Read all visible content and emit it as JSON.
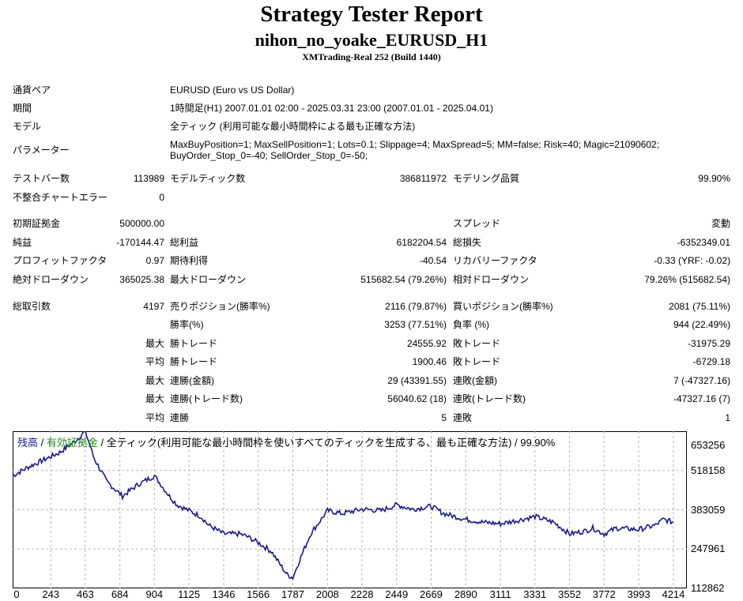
{
  "report": {
    "title": "Strategy Tester Report",
    "ea_name": "nihon_no_yoake_EURUSD_H1",
    "server": "XMTrading-Real 252 (Build 1440)"
  },
  "info": {
    "symbol_label": "通貨ペア",
    "symbol_value": "EURUSD (Euro vs US Dollar)",
    "period_label": "期間",
    "period_value": "1時間足(H1) 2007.01.01 02:00 - 2025.03.31 23:00 (2007.01.01 - 2025.04.01)",
    "model_label": "モデル",
    "model_value": "全ティック (利用可能な最小時間枠による最も正確な方法)",
    "params_label": "パラメーター",
    "params_line1": "MaxBuyPosition=1; MaxSellPosition=1; Lots=0.1; Slippage=4; MaxSpread=5; MM=false; Risk=40; Magic=21090602;",
    "params_line2": "BuyOrder_Stop_0=-40; SellOrder_Stop_0=-50;"
  },
  "stats": {
    "bars_label": "テストバー数",
    "bars_value": "113989",
    "ticks_label": "モデルティック数",
    "ticks_value": "386811972",
    "quality_label": "モデリング品質",
    "quality_value": "99.90%",
    "mismatch_label": "不整合チャートエラー",
    "mismatch_value": "0",
    "deposit_label": "初期証拠金",
    "deposit_value": "500000.00",
    "spread_label": "スプレッド",
    "spread_value": "変動",
    "net_label": "純益",
    "net_value": "-170144.47",
    "gross_profit_label": "総利益",
    "gross_profit_value": "6182204.54",
    "gross_loss_label": "総損失",
    "gross_loss_value": "-6352349.01",
    "pf_label": "プロフィットファクタ",
    "pf_value": "0.97",
    "expected_label": "期待利得",
    "expected_value": "-40.54",
    "recovery_label": "リカバリーファクタ",
    "recovery_value": "-0.33 (YRF: -0.02)",
    "abs_dd_label": "絶対ドローダウン",
    "abs_dd_value": "365025.38",
    "max_dd_label": "最大ドローダウン",
    "max_dd_value": "515682.54 (79.26%)",
    "rel_dd_label": "相対ドローダウン",
    "rel_dd_value": "79.26% (515682.54)",
    "trades_label": "総取引数",
    "trades_value": "4197",
    "short_label": "売りポジション(勝率%)",
    "short_value": "2116 (79.87%)",
    "long_label": "買いポジション(勝率%)",
    "long_value": "2081 (75.11%)",
    "winrate_label": "勝率(%)",
    "winrate_value": "3253 (77.51%)",
    "lossrate_label": "負率 (%)",
    "lossrate_value": "944 (22.49%)",
    "largest_label": "最大",
    "largest_win_label": "勝トレード",
    "largest_win_value": "24555.92",
    "largest_loss_label": "敗トレード",
    "largest_loss_value": "-31975.29",
    "average_label": "平均",
    "avg_win_label": "勝トレード",
    "avg_win_value": "1900.46",
    "avg_loss_label": "敗トレード",
    "avg_loss_value": "-6729.18",
    "max1_label": "最大",
    "cons_wins_amt_label": "連勝(金額)",
    "cons_wins_amt_value": "29 (43391.55)",
    "cons_losses_amt_label": "連敗(金額)",
    "cons_losses_amt_value": "7 (-47327.16)",
    "max2_label": "最大",
    "cons_profit_label": "連勝(トレード数)",
    "cons_profit_value": "56040.62 (18)",
    "cons_loss_label": "連敗(トレード数)",
    "cons_loss_value": "-47327.16 (7)",
    "avg2_label": "平均",
    "avg_cons_wins_label": "連勝",
    "avg_cons_wins_value": "5",
    "avg_cons_losses_label": "連敗",
    "avg_cons_losses_value": "1"
  },
  "chart_legend": {
    "balance": "残高",
    "sep1": " / ",
    "equity": "有効証拠金",
    "rest": " / 全ティック(利用可能な最小時間枠を使いすべてのティックを生成する、最も正確な方法) / 99.90%"
  },
  "chart_data": {
    "type": "line",
    "series": [
      {
        "name": "残高",
        "color": "#1a1a8c",
        "x": [
          0,
          100,
          200,
          300,
          400,
          463,
          520,
          600,
          700,
          800,
          904,
          1000,
          1050,
          1125,
          1200,
          1250,
          1346,
          1450,
          1500,
          1566,
          1650,
          1700,
          1750,
          1787,
          1830,
          1900,
          2008,
          2100,
          2228,
          2350,
          2449,
          2550,
          2669,
          2750,
          2890,
          3000,
          3111,
          3250,
          3331,
          3450,
          3552,
          3650,
          3700,
          3772,
          3850,
          3993,
          4100,
          4150,
          4214
        ],
        "y": [
          500000,
          530000,
          555000,
          580000,
          620000,
          653000,
          560000,
          480000,
          430000,
          470000,
          500000,
          430000,
          400000,
          380000,
          360000,
          330000,
          300000,
          300000,
          290000,
          270000,
          240000,
          200000,
          160000,
          150000,
          210000,
          300000,
          380000,
          370000,
          385000,
          380000,
          400000,
          385000,
          395000,
          370000,
          350000,
          340000,
          335000,
          350000,
          360000,
          340000,
          300000,
          310000,
          320000,
          300000,
          320000,
          315000,
          330000,
          350000,
          340000
        ]
      }
    ],
    "x_ticks": [
      "0",
      "243",
      "463",
      "684",
      "904",
      "1125",
      "1346",
      "1566",
      "1787",
      "2008",
      "2228",
      "2449",
      "2669",
      "2890",
      "3111",
      "3331",
      "3552",
      "3772",
      "3993",
      "4214"
    ],
    "y_ticks": [
      "653256",
      "518158",
      "383059",
      "247961",
      "112862"
    ],
    "xlim": [
      0,
      4300
    ],
    "ylim": [
      112862,
      653256
    ],
    "grid": true
  }
}
